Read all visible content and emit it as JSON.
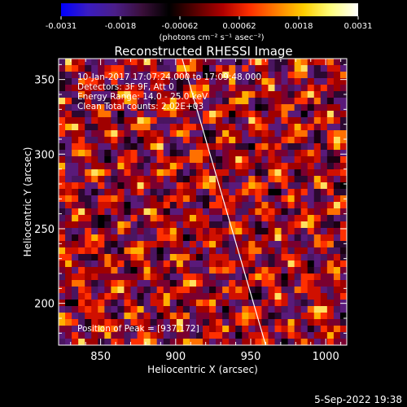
{
  "colorbar": {
    "ticks": [
      "-0.0031",
      "-0.0018",
      "-0.00062",
      "0.00062",
      "0.0018",
      "0.0031"
    ],
    "unit_label": "(photons cm⁻² s⁻¹ asec⁻²)",
    "colors": [
      "#0000ff",
      "#3a1cc0",
      "#4b1e88",
      "#3a0f3a",
      "#000000",
      "#5a0000",
      "#b00000",
      "#ff3000",
      "#ff8000",
      "#ffd000",
      "#ffff80",
      "#ffffff"
    ]
  },
  "chart_data": {
    "type": "heatmap",
    "title": "Reconstructed RHESSI Image",
    "xlabel": "Heliocentric X (arcsec)",
    "ylabel": "Heliocentric Y (arcsec)",
    "xlim": [
      822,
      1014
    ],
    "ylim": [
      172,
      364
    ],
    "xticks": [
      850,
      900,
      950,
      1000
    ],
    "yticks": [
      200,
      250,
      300,
      350
    ],
    "limb_line": [
      [
        902,
        372
      ],
      [
        960,
        172
      ]
    ],
    "annotations": [
      "10-Jan-2017 17:07:24.000 to 17:09:48.000",
      "Detectors: 3F 9F, Att 0",
      "Energy Range: 14.0 - 25.0 keV",
      "Clean     Total counts: 2.02E+03"
    ],
    "peak_label": "Position of Peak = [937,172]"
  },
  "footer": {
    "timestamp": "5-Sep-2022 19:38"
  }
}
